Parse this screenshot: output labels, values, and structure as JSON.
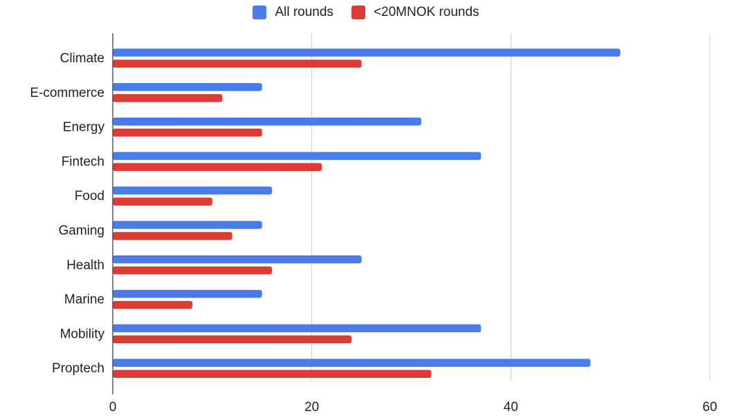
{
  "chart_data": {
    "type": "bar",
    "orientation": "horizontal",
    "categories": [
      "Climate",
      "E-commerce",
      "Energy",
      "Fintech",
      "Food",
      "Gaming",
      "Health",
      "Marine",
      "Mobility",
      "Proptech"
    ],
    "series": [
      {
        "name": "All rounds",
        "color": "#4a7bea",
        "values": [
          51,
          15,
          31,
          37,
          16,
          15,
          25,
          15,
          37,
          48
        ]
      },
      {
        "name": "<20MNOK rounds",
        "color": "#dd3b33",
        "values": [
          25,
          11,
          15,
          21,
          10,
          12,
          16,
          8,
          24,
          32
        ]
      }
    ],
    "xlim": [
      0,
      60
    ],
    "xticks": [
      "0",
      "20",
      "40",
      "60"
    ],
    "grid": true,
    "legend_position": "top"
  }
}
